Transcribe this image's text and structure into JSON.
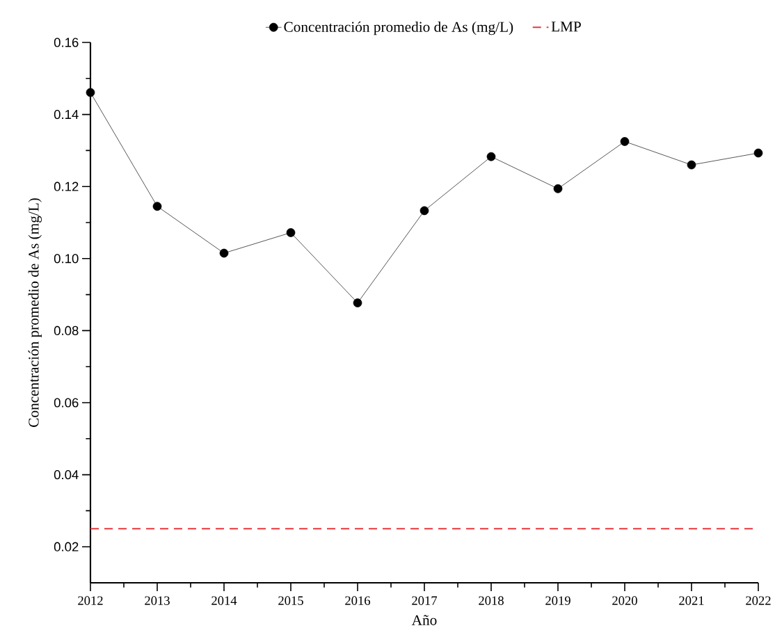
{
  "chart_data": {
    "type": "line",
    "xlabel": "Año",
    "ylabel": "Concentración promedio de As (mg/L)",
    "x": [
      2012,
      2013,
      2014,
      2015,
      2016,
      2017,
      2018,
      2019,
      2020,
      2021,
      2022
    ],
    "series": [
      {
        "name": "Concentración promedio de As (mg/L)",
        "color": "#000000",
        "values": [
          0.1461,
          0.1145,
          0.1015,
          0.1072,
          0.0877,
          0.1133,
          0.1283,
          0.1194,
          0.1325,
          0.126,
          0.1293
        ]
      }
    ],
    "xlim": [
      2012,
      2022
    ],
    "xticks": [
      2012,
      2013,
      2014,
      2015,
      2016,
      2017,
      2018,
      2019,
      2020,
      2021,
      2022
    ],
    "ylim": [
      0.01,
      0.16
    ],
    "yticks": [
      0.02,
      0.04,
      0.06,
      0.08,
      {
        "value": 0.1,
        "label": "0.10"
      },
      0.12,
      0.14,
      0.16
    ],
    "ref_lines": [
      {
        "axis": "y",
        "value": 0.025,
        "label": "LMP",
        "color": "#e8383d",
        "line_style": "dashed"
      }
    ],
    "marker": "circle",
    "line_style": "solid",
    "legend": "top",
    "grid": false
  }
}
